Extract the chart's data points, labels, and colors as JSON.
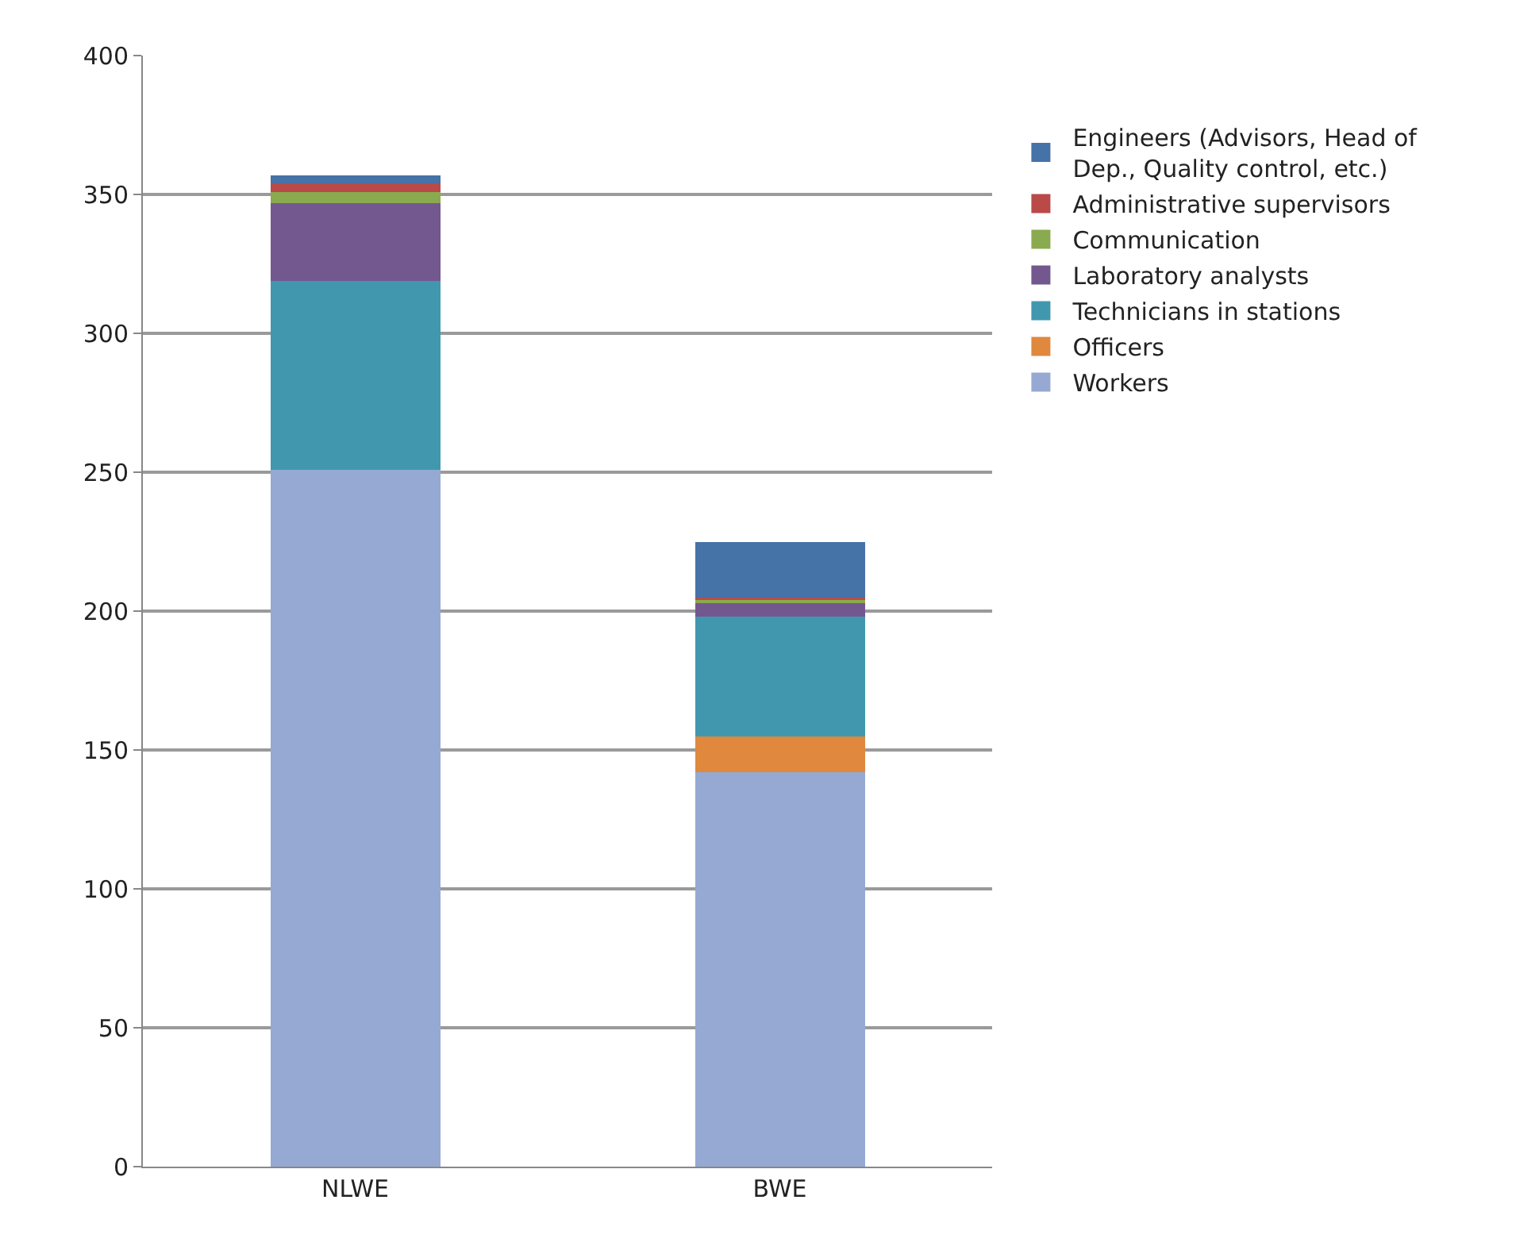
{
  "chart_data": {
    "type": "bar",
    "stacked": true,
    "categories": [
      "NLWE",
      "BWE"
    ],
    "series": [
      {
        "name": "Workers",
        "color": "#95a9d3",
        "values": [
          251,
          142
        ]
      },
      {
        "name": "Officers",
        "color": "#e0883e",
        "values": [
          0,
          13
        ]
      },
      {
        "name": "Technicians in stations",
        "color": "#4198ae",
        "values": [
          68,
          43
        ]
      },
      {
        "name": "Laboratory analysts",
        "color": "#73588f",
        "values": [
          28,
          5
        ]
      },
      {
        "name": "Communication",
        "color": "#8aaa4f",
        "values": [
          4,
          1
        ]
      },
      {
        "name": "Administrative supervisors",
        "color": "#b94a48",
        "values": [
          3,
          1
        ]
      },
      {
        "name": "Engineers (Advisors, Head of Dep., Quality control, etc.)",
        "color": "#4572a7",
        "values": [
          3,
          20
        ]
      }
    ],
    "ylim": [
      0,
      400
    ],
    "yticks": [
      0,
      50,
      100,
      150,
      200,
      250,
      300,
      350,
      400
    ],
    "grid": "y",
    "legend": "right"
  }
}
